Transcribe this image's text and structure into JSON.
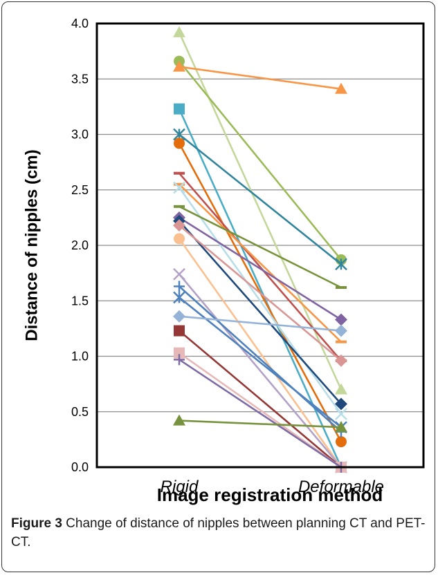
{
  "chart_data": {
    "type": "line",
    "categories": [
      "Rigid",
      "Deformable"
    ],
    "xlabel": "Image registration method",
    "ylabel": "Distance of nipples (cm)",
    "ylim": [
      0,
      4
    ],
    "yticks": [
      "0.0",
      "0.5",
      "1.0",
      "1.5",
      "2.0",
      "2.5",
      "3.0",
      "3.5",
      "4.0"
    ],
    "grid": true,
    "series": [
      {
        "values": [
          3.92,
          0.7
        ],
        "color": "#c4d79b",
        "marker": "triangle"
      },
      {
        "values": [
          3.66,
          1.87
        ],
        "color": "#9bbb59",
        "marker": "circle"
      },
      {
        "values": [
          3.61,
          3.41
        ],
        "color": "#f79646",
        "marker": "triangle"
      },
      {
        "values": [
          3.23,
          0.0
        ],
        "color": "#4bacc6",
        "marker": "square"
      },
      {
        "values": [
          3.0,
          1.83
        ],
        "color": "#31859c",
        "marker": "asterisk"
      },
      {
        "values": [
          2.92,
          0.23
        ],
        "color": "#e46c0a",
        "marker": "circle"
      },
      {
        "values": [
          2.65,
          0.96
        ],
        "color": "#c0504d",
        "marker": "dash"
      },
      {
        "values": [
          2.55,
          1.13
        ],
        "color": "#f79646",
        "marker": "dash"
      },
      {
        "values": [
          2.52,
          0.48
        ],
        "color": "#b7dee8",
        "marker": "star"
      },
      {
        "values": [
          2.35,
          1.62
        ],
        "color": "#77933c",
        "marker": "dash"
      },
      {
        "values": [
          2.25,
          1.33
        ],
        "color": "#8064a2",
        "marker": "diamond"
      },
      {
        "values": [
          2.22,
          0.57
        ],
        "color": "#1f497d",
        "marker": "diamond"
      },
      {
        "values": [
          2.18,
          0.96
        ],
        "color": "#d99694",
        "marker": "diamond"
      },
      {
        "values": [
          2.06,
          0.0
        ],
        "color": "#fac090",
        "marker": "circle"
      },
      {
        "values": [
          1.74,
          0.0
        ],
        "color": "#b3a2c7",
        "marker": "star"
      },
      {
        "values": [
          1.63,
          0.32
        ],
        "color": "#4f81bd",
        "marker": "plus"
      },
      {
        "values": [
          1.53,
          0.36
        ],
        "color": "#4f81bd",
        "marker": "asterisk"
      },
      {
        "values": [
          1.36,
          1.23
        ],
        "color": "#95b3d7",
        "marker": "diamond"
      },
      {
        "values": [
          1.23,
          0.0
        ],
        "color": "#953735",
        "marker": "square"
      },
      {
        "values": [
          1.03,
          0.0
        ],
        "color": "#e6b9b8",
        "marker": "square"
      },
      {
        "values": [
          0.97,
          0.0
        ],
        "color": "#7f6ba4",
        "marker": "plus"
      },
      {
        "values": [
          0.42,
          0.36
        ],
        "color": "#76923c",
        "marker": "triangle"
      }
    ]
  },
  "caption": {
    "label": "Figure 3",
    "text": " Change of distance of nipples between planning CT and PET-CT."
  }
}
